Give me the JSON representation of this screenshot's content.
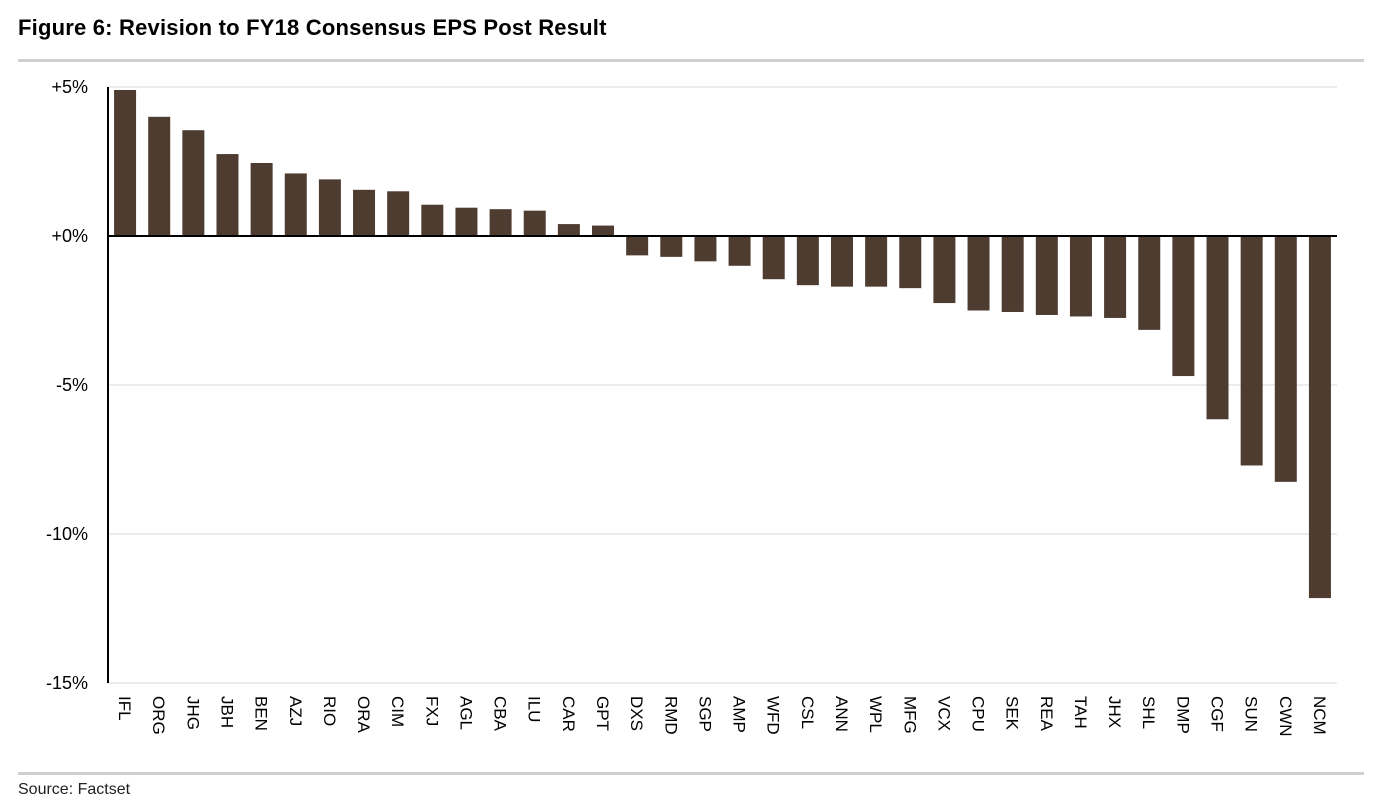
{
  "figure": {
    "title": "Figure 6: Revision to FY18 Consensus EPS Post Result",
    "source": "Source: Factset"
  },
  "colors": {
    "bar": "#4e3c31",
    "grid": "#d9d9d9",
    "axis": "#000000",
    "rule": "#cfcfcf"
  },
  "chart_data": {
    "type": "bar",
    "title": "Revision to FY18 Consensus EPS Post Result",
    "xlabel": "",
    "ylabel": "",
    "ylim": [
      -15,
      5
    ],
    "yticks": [
      5,
      0,
      -5,
      -10,
      -15
    ],
    "ytick_labels": [
      "+5%",
      "+0%",
      "-5%",
      "-10%",
      "-15%"
    ],
    "grid": true,
    "categories": [
      "IFL",
      "ORG",
      "JHG",
      "JBH",
      "BEN",
      "AZJ",
      "RIO",
      "ORA",
      "CIM",
      "FXJ",
      "AGL",
      "CBA",
      "ILU",
      "CAR",
      "GPT",
      "DXS",
      "RMD",
      "SGP",
      "AMP",
      "WFD",
      "CSL",
      "ANN",
      "WPL",
      "MFG",
      "VCX",
      "CPU",
      "SEK",
      "REA",
      "TAH",
      "JHX",
      "SHL",
      "DMP",
      "CGF",
      "SUN",
      "CWN",
      "NCM"
    ],
    "values": [
      4.9,
      4.0,
      3.55,
      2.75,
      2.45,
      2.1,
      1.9,
      1.55,
      1.5,
      1.05,
      0.95,
      0.9,
      0.85,
      0.4,
      0.35,
      -0.65,
      -0.7,
      -0.85,
      -1.0,
      -1.45,
      -1.65,
      -1.7,
      -1.7,
      -1.75,
      -2.25,
      -2.5,
      -2.55,
      -2.65,
      -2.7,
      -2.75,
      -3.15,
      -4.7,
      -6.15,
      -7.7,
      -8.25,
      -12.15
    ]
  }
}
